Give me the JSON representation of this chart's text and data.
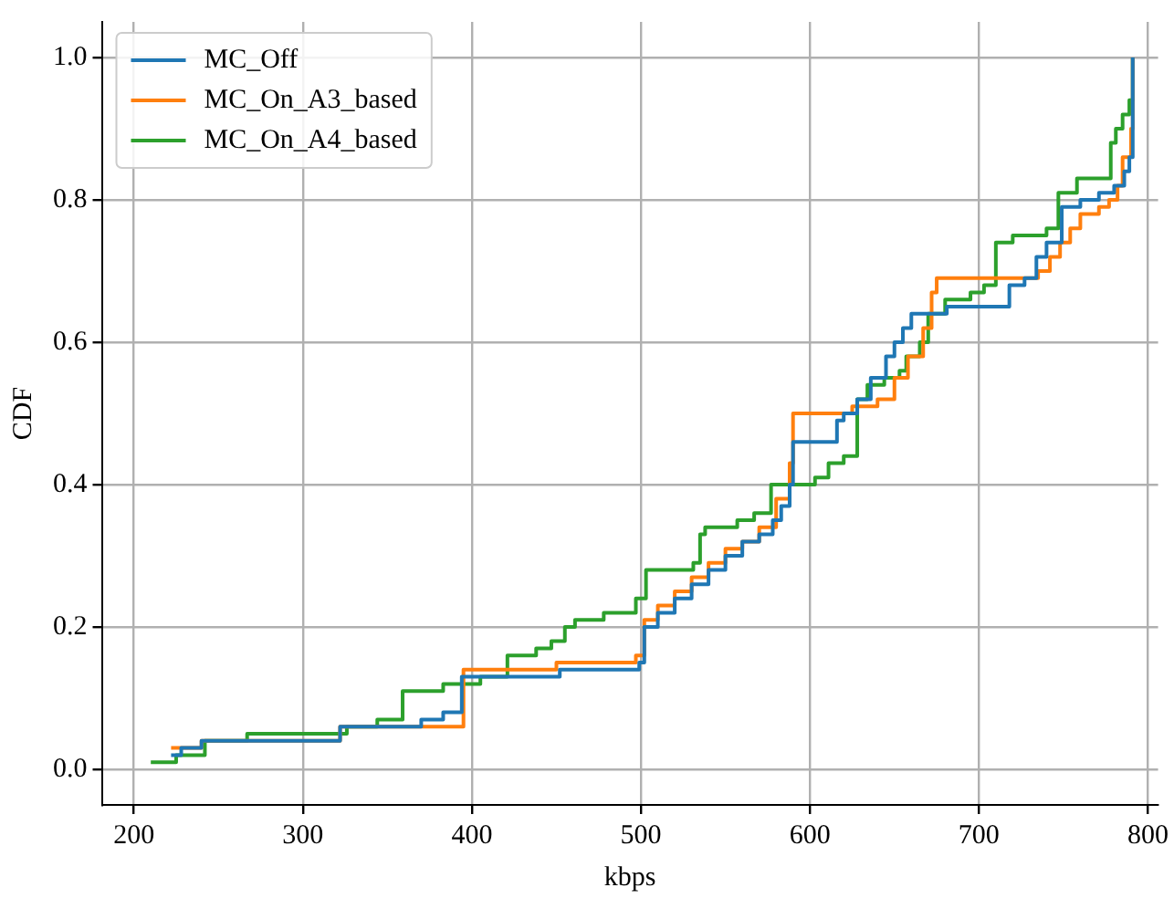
{
  "chart_data": {
    "type": "step",
    "xlabel": "kbps",
    "ylabel": "CDF",
    "xlim": [
      181,
      806
    ],
    "ylim": [
      -0.05,
      1.05
    ],
    "xticks": [
      200,
      300,
      400,
      500,
      600,
      700,
      800
    ],
    "yticks": [
      {
        "value": 0,
        "label": "0.0"
      },
      {
        "value": 0.2,
        "label": "0.2"
      },
      {
        "value": 0.4,
        "label": "0.4"
      },
      {
        "value": 0.6,
        "label": "0.6"
      },
      {
        "value": 0.8,
        "label": "0.8"
      },
      {
        "value": 1,
        "label": "1.0"
      }
    ],
    "grid": true,
    "legend": "top left",
    "line_style": "solid",
    "series": [
      {
        "name": "MC_Off",
        "color": "#1f77b4",
        "x": [
          222,
          228,
          240,
          322,
          370,
          383,
          394,
          452,
          499,
          502,
          510,
          520,
          530,
          540,
          550,
          560,
          570,
          578,
          583,
          588,
          590,
          616,
          620,
          628,
          636,
          645,
          650,
          655,
          660,
          681,
          718,
          727,
          734,
          740,
          749,
          760,
          771,
          780,
          786,
          789,
          791
        ],
        "values": [
          0.02,
          0.03,
          0.04,
          0.06,
          0.07,
          0.08,
          0.13,
          0.14,
          0.15,
          0.2,
          0.22,
          0.24,
          0.26,
          0.28,
          0.3,
          0.32,
          0.33,
          0.35,
          0.37,
          0.4,
          0.46,
          0.49,
          0.5,
          0.52,
          0.55,
          0.58,
          0.6,
          0.62,
          0.64,
          0.65,
          0.68,
          0.69,
          0.72,
          0.74,
          0.79,
          0.8,
          0.81,
          0.82,
          0.84,
          0.86,
          1.0
        ]
      },
      {
        "name": "MC_On_A3_based",
        "color": "#ff7f0e",
        "x": [
          222,
          240,
          322,
          395,
          450,
          497,
          502,
          510,
          520,
          530,
          540,
          550,
          560,
          570,
          580,
          588,
          590,
          625,
          640,
          650,
          658,
          667,
          672,
          675,
          735,
          742,
          748,
          754,
          760,
          771,
          777,
          782,
          785,
          790,
          791
        ],
        "values": [
          0.03,
          0.04,
          0.06,
          0.14,
          0.15,
          0.16,
          0.21,
          0.23,
          0.25,
          0.27,
          0.29,
          0.31,
          0.32,
          0.34,
          0.38,
          0.43,
          0.5,
          0.51,
          0.52,
          0.55,
          0.58,
          0.62,
          0.67,
          0.69,
          0.7,
          0.72,
          0.74,
          0.76,
          0.78,
          0.79,
          0.8,
          0.82,
          0.86,
          0.9,
          1.0
        ]
      },
      {
        "name": "MC_On_A4_based",
        "color": "#2ca02c",
        "x": [
          210,
          225,
          242,
          267,
          326,
          344,
          359,
          383,
          405,
          421,
          438,
          447,
          455,
          461,
          478,
          497,
          503,
          531,
          535,
          538,
          557,
          567,
          577,
          603,
          611,
          620,
          628,
          634,
          644,
          653,
          657,
          665,
          670,
          680,
          689,
          695,
          703,
          710,
          720,
          740,
          747,
          758,
          778,
          781,
          785,
          789,
          791
        ],
        "values": [
          0.01,
          0.02,
          0.04,
          0.05,
          0.06,
          0.07,
          0.11,
          0.12,
          0.13,
          0.16,
          0.17,
          0.18,
          0.2,
          0.21,
          0.22,
          0.24,
          0.28,
          0.29,
          0.33,
          0.34,
          0.35,
          0.36,
          0.4,
          0.41,
          0.43,
          0.44,
          0.52,
          0.54,
          0.55,
          0.56,
          0.58,
          0.6,
          0.64,
          0.66,
          0.66,
          0.67,
          0.68,
          0.74,
          0.75,
          0.76,
          0.81,
          0.83,
          0.88,
          0.9,
          0.92,
          0.94,
          1.0
        ]
      }
    ]
  }
}
